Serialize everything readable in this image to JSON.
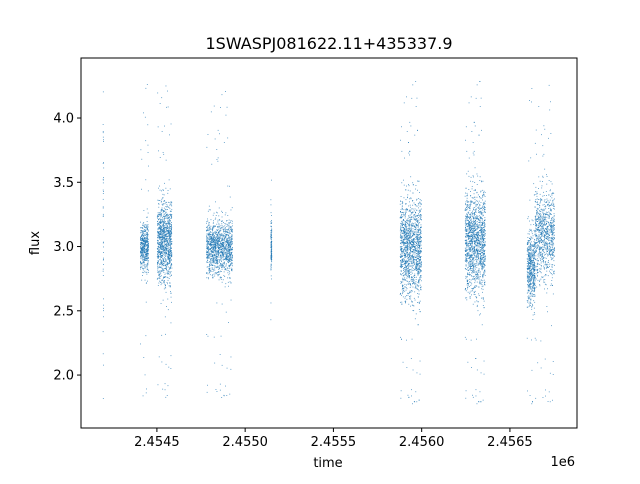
{
  "chart_data": {
    "type": "scatter",
    "title": "1SWASPJ081622.11+435337.9",
    "xlabel": "time",
    "ylabel": "flux",
    "x_offset_label": "1e6",
    "xlim": [
      2454070,
      2456880
    ],
    "ylim": [
      1.588,
      4.467
    ],
    "xticks": [
      2454500,
      2455000,
      2455500,
      2456000,
      2456500
    ],
    "xtick_labels": [
      "2.4545",
      "2.4550",
      "2.4555",
      "2.4560",
      "2.4565"
    ],
    "yticks": [
      2.0,
      2.5,
      3.0,
      3.5,
      4.0
    ],
    "ytick_labels": [
      "2.0",
      "2.5",
      "3.0",
      "3.5",
      "4.0"
    ],
    "grid": false,
    "marker_color": "#1f77b4",
    "series_note": "dense light-curve points grouped into observing seasons (time range in JD, flux mean/std, approx count, outlier flux range)",
    "clusters": [
      {
        "t": [
          2454193,
          2454196
        ],
        "mean": 3.0,
        "sd": 0.8,
        "n": 45,
        "out": [
          1.75,
          4.3
        ]
      },
      {
        "t": [
          2454404,
          2454450
        ],
        "mean": 3.0,
        "sd": 0.13,
        "n": 500,
        "out": [
          1.8,
          4.3
        ]
      },
      {
        "t": [
          2454500,
          2454582
        ],
        "mean": 3.05,
        "sd": 0.22,
        "n": 1100,
        "out": [
          1.8,
          4.32
        ]
      },
      {
        "t": [
          2454778,
          2454926
        ],
        "mean": 3.0,
        "sd": 0.15,
        "n": 1300,
        "out": [
          1.8,
          4.25
        ]
      },
      {
        "t": [
          2455143,
          2455148
        ],
        "mean": 3.0,
        "sd": 0.15,
        "n": 120,
        "out": [
          2.4,
          3.6
        ]
      },
      {
        "t": [
          2455876,
          2455996
        ],
        "mean": 3.0,
        "sd": 0.27,
        "n": 1500,
        "out": [
          1.75,
          4.33
        ]
      },
      {
        "t": [
          2456244,
          2456358
        ],
        "mean": 3.05,
        "sd": 0.28,
        "n": 1500,
        "out": [
          1.75,
          4.33
        ]
      },
      {
        "t": [
          2456595,
          2456640
        ],
        "mean": 2.85,
        "sd": 0.2,
        "n": 550,
        "out": [
          1.75,
          4.3
        ]
      },
      {
        "t": [
          2456640,
          2456750
        ],
        "mean": 3.1,
        "sd": 0.25,
        "n": 900,
        "out": [
          1.75,
          4.3
        ]
      }
    ]
  }
}
